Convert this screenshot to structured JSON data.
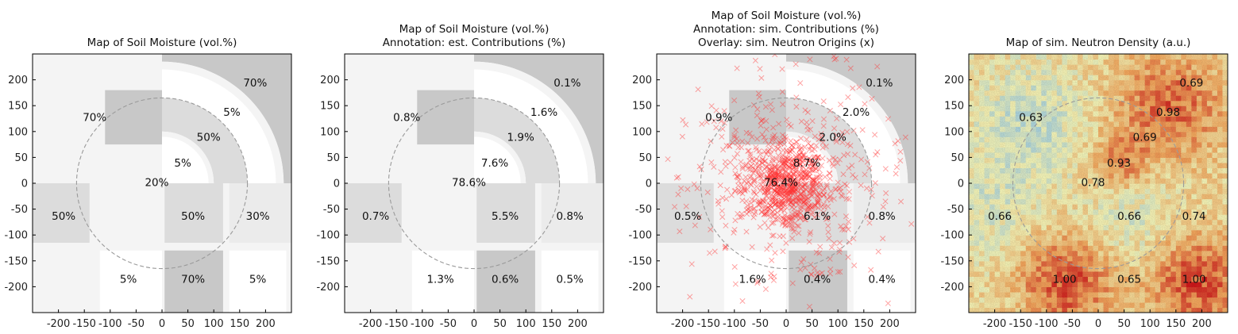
{
  "chart_data": [
    {
      "type": "heatmap",
      "title_lines": [
        "Map of Soil Moisture (vol.%)"
      ],
      "xticks": [
        -200,
        -150,
        -100,
        -50,
        0,
        50,
        100,
        150,
        200
      ],
      "yticks": [
        200,
        150,
        100,
        50,
        0,
        -50,
        -100,
        -150,
        -200
      ],
      "xlim": [
        -250,
        250
      ],
      "ylim": [
        -250,
        250
      ],
      "annotations": [
        {
          "x": 180,
          "y": 195,
          "label": "70%"
        },
        {
          "x": 135,
          "y": 138,
          "label": "5%"
        },
        {
          "x": -130,
          "y": 128,
          "label": "70%"
        },
        {
          "x": 90,
          "y": 90,
          "label": "50%"
        },
        {
          "x": 40,
          "y": 40,
          "label": "5%"
        },
        {
          "x": -10,
          "y": 2,
          "label": "20%"
        },
        {
          "x": -190,
          "y": -63,
          "label": "50%"
        },
        {
          "x": 60,
          "y": -63,
          "label": "50%"
        },
        {
          "x": 185,
          "y": -63,
          "label": "30%"
        },
        {
          "x": -65,
          "y": -185,
          "label": "5%"
        },
        {
          "x": 60,
          "y": -185,
          "label": "70%"
        },
        {
          "x": 185,
          "y": -185,
          "label": "5%"
        }
      ]
    },
    {
      "type": "heatmap",
      "title_lines": [
        "Map of Soil Moisture (vol.%)",
        "Annotation: est. Contributions (%)"
      ],
      "xticks": [
        -200,
        -150,
        -100,
        -50,
        0,
        50,
        100,
        150,
        200
      ],
      "yticks": [
        200,
        150,
        100,
        50,
        0,
        -50,
        -100,
        -150,
        -200
      ],
      "xlim": [
        -250,
        250
      ],
      "ylim": [
        -250,
        250
      ],
      "annotations": [
        {
          "x": 180,
          "y": 195,
          "label": "0.1%"
        },
        {
          "x": 135,
          "y": 138,
          "label": "1.6%"
        },
        {
          "x": -130,
          "y": 128,
          "label": "0.8%"
        },
        {
          "x": 90,
          "y": 90,
          "label": "1.9%"
        },
        {
          "x": 40,
          "y": 40,
          "label": "7.6%"
        },
        {
          "x": -10,
          "y": 2,
          "label": "78.6%"
        },
        {
          "x": -190,
          "y": -63,
          "label": "0.7%"
        },
        {
          "x": 60,
          "y": -63,
          "label": "5.5%"
        },
        {
          "x": 185,
          "y": -63,
          "label": "0.8%"
        },
        {
          "x": -65,
          "y": -185,
          "label": "1.3%"
        },
        {
          "x": 60,
          "y": -185,
          "label": "0.6%"
        },
        {
          "x": 185,
          "y": -185,
          "label": "0.5%"
        }
      ]
    },
    {
      "type": "scatter",
      "title_lines": [
        "Map of Soil Moisture (vol.%)",
        "Annotation: sim. Contributions (%)",
        "Overlay: sim. Neutron Origins (x)"
      ],
      "xticks": [
        -200,
        -150,
        -100,
        -50,
        0,
        50,
        100,
        150,
        200
      ],
      "yticks": [
        200,
        150,
        100,
        50,
        0,
        -50,
        -100,
        -150,
        -200
      ],
      "xlim": [
        -250,
        250
      ],
      "ylim": [
        -250,
        250
      ],
      "annotations": [
        {
          "x": 180,
          "y": 195,
          "label": "0.1%"
        },
        {
          "x": 135,
          "y": 138,
          "label": "2.0%"
        },
        {
          "x": -130,
          "y": 128,
          "label": "0.9%"
        },
        {
          "x": 90,
          "y": 90,
          "label": "2.0%"
        },
        {
          "x": 40,
          "y": 40,
          "label": "8.7%"
        },
        {
          "x": -10,
          "y": 2,
          "label": "76.4%"
        },
        {
          "x": -190,
          "y": -63,
          "label": "0.5%"
        },
        {
          "x": 60,
          "y": -63,
          "label": "6.1%"
        },
        {
          "x": 185,
          "y": -63,
          "label": "0.8%"
        },
        {
          "x": -65,
          "y": -185,
          "label": "1.6%"
        },
        {
          "x": 60,
          "y": -185,
          "label": "0.4%"
        },
        {
          "x": 185,
          "y": -185,
          "label": "0.4%"
        }
      ]
    },
    {
      "type": "heatmap",
      "title_lines": [
        "Map of sim. Neutron Density (a.u.)"
      ],
      "xticks": [
        -200,
        -150,
        -100,
        -50,
        0,
        50,
        100,
        150,
        200
      ],
      "yticks": [
        200,
        150,
        100,
        50,
        0,
        -50,
        -100,
        -150,
        -200
      ],
      "xlim": [
        -250,
        250
      ],
      "ylim": [
        -250,
        250
      ],
      "annotations": [
        {
          "x": 180,
          "y": 195,
          "label": "0.69"
        },
        {
          "x": 135,
          "y": 138,
          "label": "0.98"
        },
        {
          "x": -130,
          "y": 128,
          "label": "0.63"
        },
        {
          "x": 90,
          "y": 90,
          "label": "0.69"
        },
        {
          "x": 40,
          "y": 40,
          "label": "0.93"
        },
        {
          "x": -10,
          "y": 2,
          "label": "0.78"
        },
        {
          "x": -190,
          "y": -63,
          "label": "0.66"
        },
        {
          "x": 60,
          "y": -63,
          "label": "0.66"
        },
        {
          "x": 185,
          "y": -63,
          "label": "0.74"
        },
        {
          "x": -65,
          "y": -185,
          "label": "1.00"
        },
        {
          "x": 60,
          "y": -185,
          "label": "0.65"
        },
        {
          "x": 185,
          "y": -185,
          "label": "1.00"
        }
      ]
    }
  ],
  "colors": {
    "moisture_5": "#ffffff",
    "moisture_20": "#f4f4f4",
    "moisture_30": "#ebebeb",
    "moisture_50": "#dcdcdc",
    "moisture_70": "#c8c8c8",
    "overlay_marker": "#ff3030",
    "footprint_circle": "#9a9a9a"
  }
}
